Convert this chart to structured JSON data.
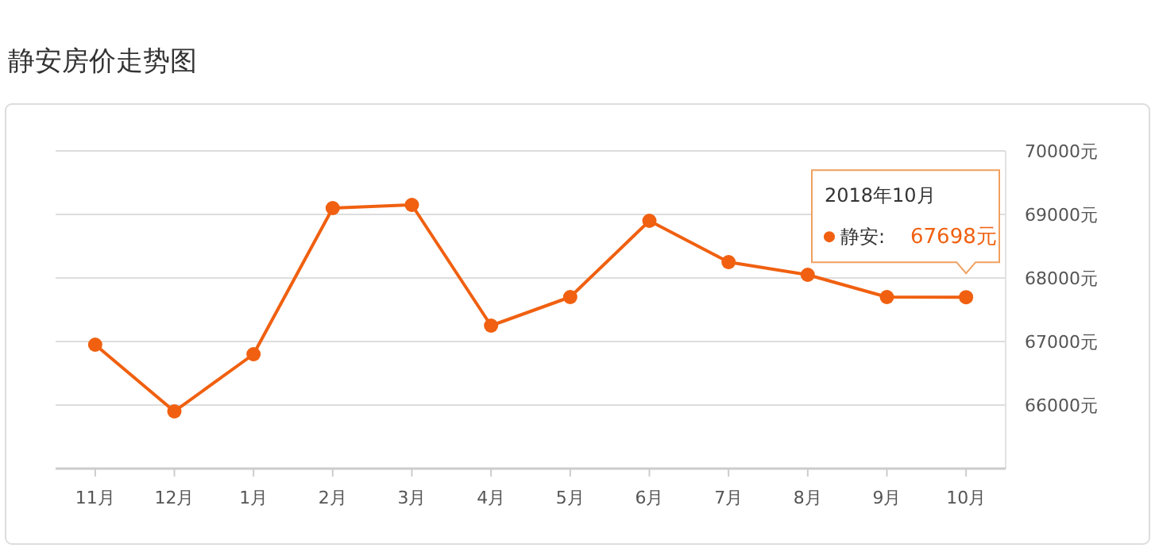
{
  "chart_data": {
    "type": "line",
    "title": "静安房价走势图",
    "categories": [
      "11月",
      "12月",
      "1月",
      "2月",
      "3月",
      "4月",
      "5月",
      "6月",
      "7月",
      "8月",
      "9月",
      "10月"
    ],
    "series": [
      {
        "color": "#f06010",
        "values": [
          66950,
          65900,
          66800,
          69100,
          69150,
          67250,
          67700,
          68900,
          68250,
          68050,
          67700,
          67698
        ],
        "value_labels": [
          null,
          null,
          null,
          null,
          null,
          null,
          null,
          null,
          null,
          null,
          null,
          "67698元"
        ]
      }
    ],
    "ylim": [
      65000,
      70000
    ],
    "yticks": [
      {
        "value": 66000,
        "label": "66000元"
      },
      {
        "value": 67000,
        "label": "67000元"
      },
      {
        "value": 68000,
        "label": "68000元"
      },
      {
        "value": 69000,
        "label": "69000元"
      },
      {
        "value": 70000,
        "label": "70000元"
      }
    ],
    "annotations": [
      "2018年10月",
      "静安:"
    ],
    "grid": "y",
    "marker": "circle",
    "line_style": "solid"
  }
}
